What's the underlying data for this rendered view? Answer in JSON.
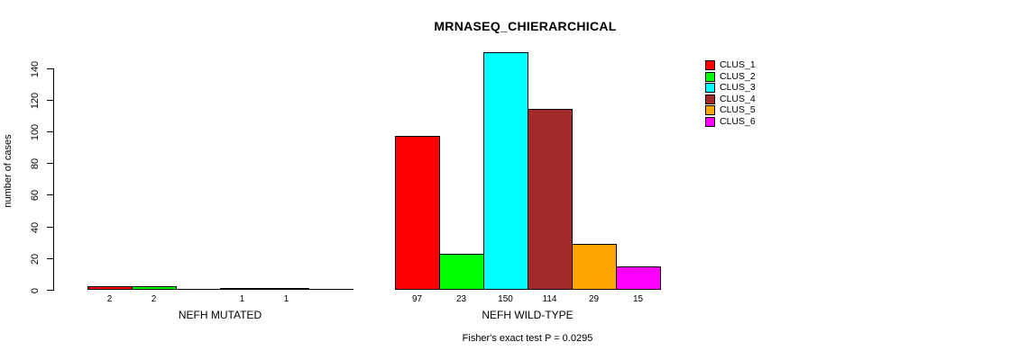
{
  "chart_data": {
    "type": "bar",
    "title": "MRNASEQ_CHIERARCHICAL",
    "ylabel": "number of cases",
    "footer": "Fisher's exact test P = 0.0295",
    "ylim": [
      0,
      150
    ],
    "yticks": [
      0,
      20,
      40,
      60,
      80,
      100,
      120,
      140
    ],
    "grid": false,
    "legend_position": "right",
    "legend": [
      {
        "label": "CLUS_1",
        "color": "#FF0000"
      },
      {
        "label": "CLUS_2",
        "color": "#00FF00"
      },
      {
        "label": "CLUS_3",
        "color": "#00FFFF"
      },
      {
        "label": "CLUS_4",
        "color": "#A52A2A"
      },
      {
        "label": "CLUS_5",
        "color": "#FFA500"
      },
      {
        "label": "CLUS_6",
        "color": "#FF00FF"
      }
    ],
    "groups": [
      {
        "label": "NEFH MUTATED",
        "values": [
          2,
          2,
          0,
          1,
          1,
          0
        ]
      },
      {
        "label": "NEFH WILD-TYPE",
        "values": [
          97,
          23,
          150,
          114,
          29,
          15
        ]
      }
    ]
  }
}
